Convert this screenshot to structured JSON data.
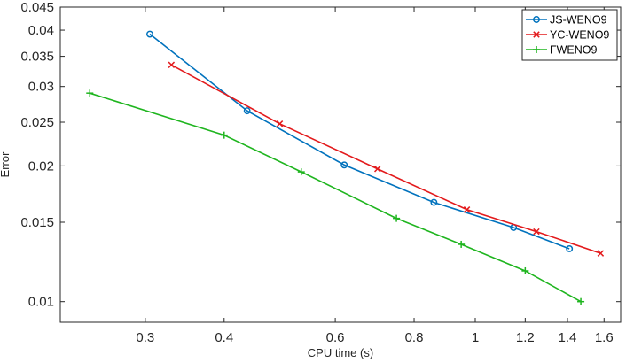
{
  "chart_data": {
    "type": "line",
    "title": "",
    "xlabel": "CPU time (s)",
    "ylabel": "Error",
    "xscale": "log",
    "yscale": "log",
    "xlim": [
      0.22,
      1.7
    ],
    "ylim": [
      0.009,
      0.045
    ],
    "xticks": [
      0.3,
      0.4,
      0.6,
      0.8,
      1,
      1.2,
      1.4,
      1.6
    ],
    "xtick_labels": [
      "0.3",
      "0.4",
      "0.6",
      "0.8",
      "1",
      "1.2",
      "1.4",
      "1.6"
    ],
    "yticks": [
      0.01,
      0.015,
      0.02,
      0.025,
      0.03,
      0.035,
      0.04,
      0.045
    ],
    "ytick_labels": [
      "0.01",
      "0.015",
      "0.02",
      "0.025",
      "0.03",
      "0.035",
      "0.04",
      "0.045"
    ],
    "grid": false,
    "legend_position": "top-right",
    "series": [
      {
        "name": "JS-WENO9",
        "color": "#0072BD",
        "marker": "circle",
        "x": [
          0.305,
          0.435,
          0.62,
          0.86,
          1.15,
          1.41
        ],
        "y": [
          0.0392,
          0.0265,
          0.0201,
          0.0166,
          0.0146,
          0.0131
        ]
      },
      {
        "name": "YC-WENO9",
        "color": "#E31A1C",
        "marker": "x",
        "x": [
          0.33,
          0.49,
          0.7,
          0.97,
          1.25,
          1.58
        ],
        "y": [
          0.0335,
          0.0248,
          0.0197,
          0.016,
          0.0143,
          0.0128
        ]
      },
      {
        "name": "FWENO9",
        "color": "#1FB51F",
        "marker": "plus",
        "x": [
          0.245,
          0.4,
          0.53,
          0.75,
          0.95,
          1.2,
          1.47
        ],
        "y": [
          0.029,
          0.0234,
          0.0194,
          0.0153,
          0.0134,
          0.0117,
          0.01
        ]
      }
    ]
  }
}
